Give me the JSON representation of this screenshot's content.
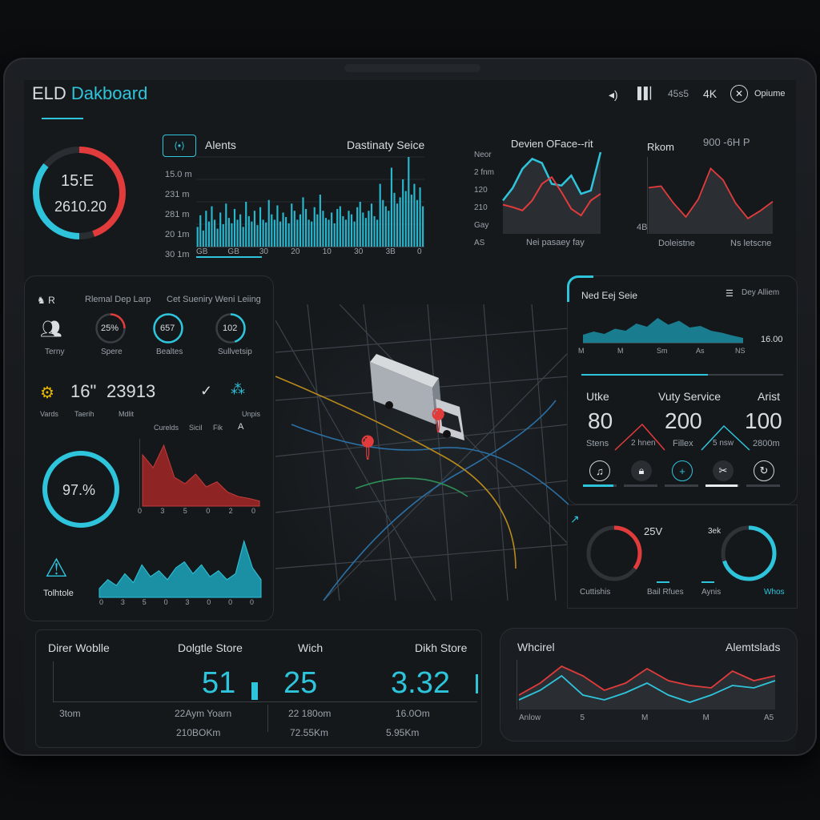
{
  "colors": {
    "accent": "#2ec5dc",
    "alert": "#e23b3b",
    "bg": "#16191c",
    "panel": "#181b1f"
  },
  "header": {
    "title_main": "ELD ",
    "title_accent": "Dakboard",
    "status": {
      "volume_icon": "volume-icon",
      "signal_icon": "signal-bars-icon",
      "time": "45s5",
      "resolution": "4K",
      "close_icon": "close-circle-icon",
      "options_label": "Opiume"
    }
  },
  "top_gauge": {
    "line1": "15:E",
    "line2": "2610.20",
    "progress": 0.72
  },
  "alerts_panel": {
    "icon": "alert-toggle-icon",
    "title": "Alents",
    "subtitle": "Dastinaty Seice",
    "y_ticks": [
      "15.0 m",
      "231 m",
      "281 m",
      "20 1m",
      "30 1m"
    ],
    "x_ticks": [
      "GB",
      "GB",
      "30",
      "20",
      "10",
      "30",
      "3B",
      "0"
    ],
    "chart_data": {
      "type": "bar",
      "categories": [
        "1",
        "2",
        "3",
        "4",
        "5",
        "6",
        "7",
        "8",
        "9",
        "10",
        "11",
        "12",
        "13",
        "14",
        "15",
        "16",
        "17",
        "18",
        "19",
        "20",
        "21",
        "22",
        "23",
        "24",
        "25",
        "26",
        "27",
        "28",
        "29",
        "30",
        "31",
        "32",
        "33",
        "34",
        "35",
        "36",
        "37",
        "38",
        "39",
        "40",
        "41",
        "42",
        "43",
        "44",
        "45",
        "46",
        "47",
        "48",
        "49",
        "50",
        "51",
        "52",
        "53",
        "54",
        "55",
        "56",
        "57",
        "58",
        "59",
        "60",
        "61",
        "62",
        "63",
        "64",
        "65",
        "66",
        "67",
        "68",
        "69",
        "70",
        "71",
        "72",
        "73",
        "74",
        "75",
        "76",
        "77",
        "78",
        "79",
        "80"
      ],
      "values": [
        22,
        35,
        18,
        40,
        28,
        45,
        30,
        20,
        38,
        25,
        48,
        32,
        26,
        42,
        30,
        36,
        22,
        50,
        34,
        28,
        40,
        24,
        44,
        30,
        27,
        52,
        36,
        30,
        46,
        28,
        38,
        33,
        26,
        48,
        40,
        30,
        36,
        55,
        42,
        30,
        28,
        44,
        36,
        58,
        40,
        32,
        30,
        38,
        26,
        42,
        45,
        34,
        30,
        40,
        36,
        28,
        44,
        50,
        38,
        32,
        40,
        48,
        34,
        30,
        70,
        52,
        45,
        40,
        88,
        60,
        48,
        55,
        75,
        62,
        100,
        58,
        70,
        52,
        66,
        45
      ],
      "ylim": [
        0,
        100
      ]
    }
  },
  "driven_panel": {
    "title": "Devien OFace--rit",
    "y_ticks": [
      "Neor",
      "2 fnm",
      "120",
      "210",
      "Gay",
      "AS"
    ],
    "x_label": "Nei pasaey fay",
    "chart_data": {
      "type": "line",
      "x": [
        0,
        1,
        2,
        3,
        4,
        5,
        6,
        7,
        8,
        9,
        10
      ],
      "series": [
        {
          "values": [
            40,
            55,
            78,
            90,
            85,
            60,
            58,
            70,
            48,
            52,
            98
          ]
        },
        {
          "values": [
            35,
            32,
            28,
            40,
            60,
            68,
            50,
            30,
            22,
            40,
            48
          ]
        }
      ],
      "ylim": [
        0,
        100
      ]
    }
  },
  "rhom_panel": {
    "title": "Rkom",
    "meta": "900 -6H P",
    "y_ticks": [
      "4B"
    ],
    "x_ticks": [
      "Doleistne",
      "Ns letscne"
    ],
    "chart_data": {
      "type": "line",
      "x": [
        0,
        1,
        2,
        3,
        4,
        5,
        6,
        7,
        8,
        9,
        10
      ],
      "series": [
        {
          "values": [
            60,
            62,
            40,
            22,
            45,
            85,
            70,
            40,
            20,
            30,
            42
          ]
        }
      ],
      "ylim": [
        0,
        100
      ]
    }
  },
  "left_panel": {
    "header_icon": "driver-icon",
    "header_icon_label": "R",
    "title1": "Rlemal Dep Larp",
    "title2": "Cet Sueniry Weni Leiing",
    "stats": [
      {
        "icon": "team-icon",
        "label": "Terny"
      },
      {
        "value": "25%",
        "label": "Spere",
        "progress": 0.25
      },
      {
        "value": "657",
        "label": "Bealtes",
        "progress": 1.0
      },
      {
        "value": "102",
        "label": "Sullvetsip",
        "progress": 0.45
      }
    ],
    "counter": {
      "icon": "engine-icon",
      "value1": "16\"",
      "value2": "23913",
      "sub": [
        "Vards",
        "Taerih",
        "Mdlit"
      ],
      "check_icon": "check-icon",
      "cluster_icon": "cluster-icon",
      "cluster_label": "Unpis"
    },
    "chart_tabs": [
      "Curelds",
      "Sicil",
      "Fik",
      "A"
    ],
    "big_gauge": {
      "value": "97.%",
      "progress": 1.0
    },
    "red_chart": {
      "x_ticks": [
        "0",
        "3",
        "5",
        "0",
        "2",
        "0"
      ],
      "chart_data": {
        "type": "area",
        "x": [
          0,
          1,
          2,
          3,
          4,
          5,
          6,
          7,
          8,
          9,
          10,
          11
        ],
        "values": [
          80,
          60,
          95,
          45,
          35,
          50,
          30,
          38,
          22,
          15,
          12,
          8
        ],
        "ylim": [
          0,
          100
        ]
      }
    },
    "warning": {
      "icon": "warning-icon",
      "label": "Tolhtole"
    },
    "teal_chart": {
      "x_ticks": [
        "0",
        "3",
        "5",
        "0",
        "3",
        "0",
        "0",
        "0"
      ],
      "chart_data": {
        "type": "area",
        "x": [
          0,
          1,
          2,
          3,
          4,
          5,
          6,
          7,
          8,
          9,
          10,
          11,
          12,
          13,
          14,
          15,
          16,
          17,
          18,
          19
        ],
        "values": [
          15,
          30,
          20,
          40,
          25,
          55,
          35,
          45,
          30,
          50,
          60,
          40,
          55,
          35,
          45,
          30,
          40,
          95,
          50,
          30
        ],
        "ylim": [
          0,
          100
        ]
      }
    }
  },
  "map": {
    "truck_label": "truck",
    "pins": [
      "map-pin-icon",
      "map-pin-icon"
    ]
  },
  "right_panel": {
    "title": "Ned Eej Seie",
    "right_label": "Dey Alliem",
    "right_icon": "list-icon",
    "axis": [
      "M",
      "M",
      "Sm",
      "As",
      "NS"
    ],
    "axis_right": "16.00",
    "chart_data": {
      "type": "area",
      "x": [
        0,
        1,
        2,
        3,
        4,
        5,
        6,
        7,
        8,
        9,
        10,
        11,
        12,
        13,
        14,
        15
      ],
      "values": [
        20,
        28,
        22,
        35,
        30,
        48,
        40,
        62,
        45,
        55,
        38,
        42,
        30,
        25,
        18,
        12
      ],
      "ylim": [
        0,
        100
      ]
    },
    "stats": [
      {
        "label": "Utke",
        "value": "80",
        "sub": "Stens"
      },
      {
        "label": "Vuty Service",
        "value": "200",
        "sub": "Fillex"
      },
      {
        "label": "Arist",
        "value": "100",
        "sub": "2800m"
      }
    ],
    "mini_labels": [
      "2 hnen",
      "5 nsw"
    ],
    "icons": [
      "music-note-icon",
      "lock-icon",
      "plus-icon",
      "tools-icon",
      "refresh-icon"
    ],
    "icon_levels": [
      0.9,
      0.0,
      0.0,
      0.95,
      0.0
    ]
  },
  "right_gauges": {
    "left": {
      "value": "25V",
      "label": "Cuttishis",
      "progress": 0.35
    },
    "right": {
      "value": "3ek",
      "label": "Aynis",
      "progress": 0.7
    },
    "mid_label": "Bail Rfues",
    "side_label": "Whos"
  },
  "bottom_left": {
    "headers": [
      "Direr Woblle",
      "Dolgtle Store",
      "Wich",
      "Dikh Store"
    ],
    "values": [
      "51",
      "25",
      "3.32"
    ],
    "row1": [
      "3tom",
      "22Aym Yoarn",
      "22 180om",
      "16.0Om"
    ],
    "row2": [
      "210BOKm",
      "72.55Km",
      "5.95Km"
    ]
  },
  "bottom_right": {
    "title": "Whcirel",
    "right_title": "Alemtslads",
    "x_ticks": [
      "Anlow",
      "5",
      "M",
      "M",
      "A5"
    ],
    "chart_data": {
      "type": "line",
      "x": [
        0,
        1,
        2,
        3,
        4,
        5,
        6,
        7,
        8,
        9,
        10,
        11,
        12
      ],
      "series": [
        {
          "values": [
            30,
            55,
            90,
            70,
            40,
            55,
            85,
            60,
            50,
            45,
            80,
            60,
            70
          ]
        },
        {
          "values": [
            20,
            40,
            70,
            30,
            20,
            35,
            55,
            30,
            15,
            30,
            50,
            45,
            60
          ]
        }
      ],
      "ylim": [
        0,
        100
      ]
    }
  }
}
